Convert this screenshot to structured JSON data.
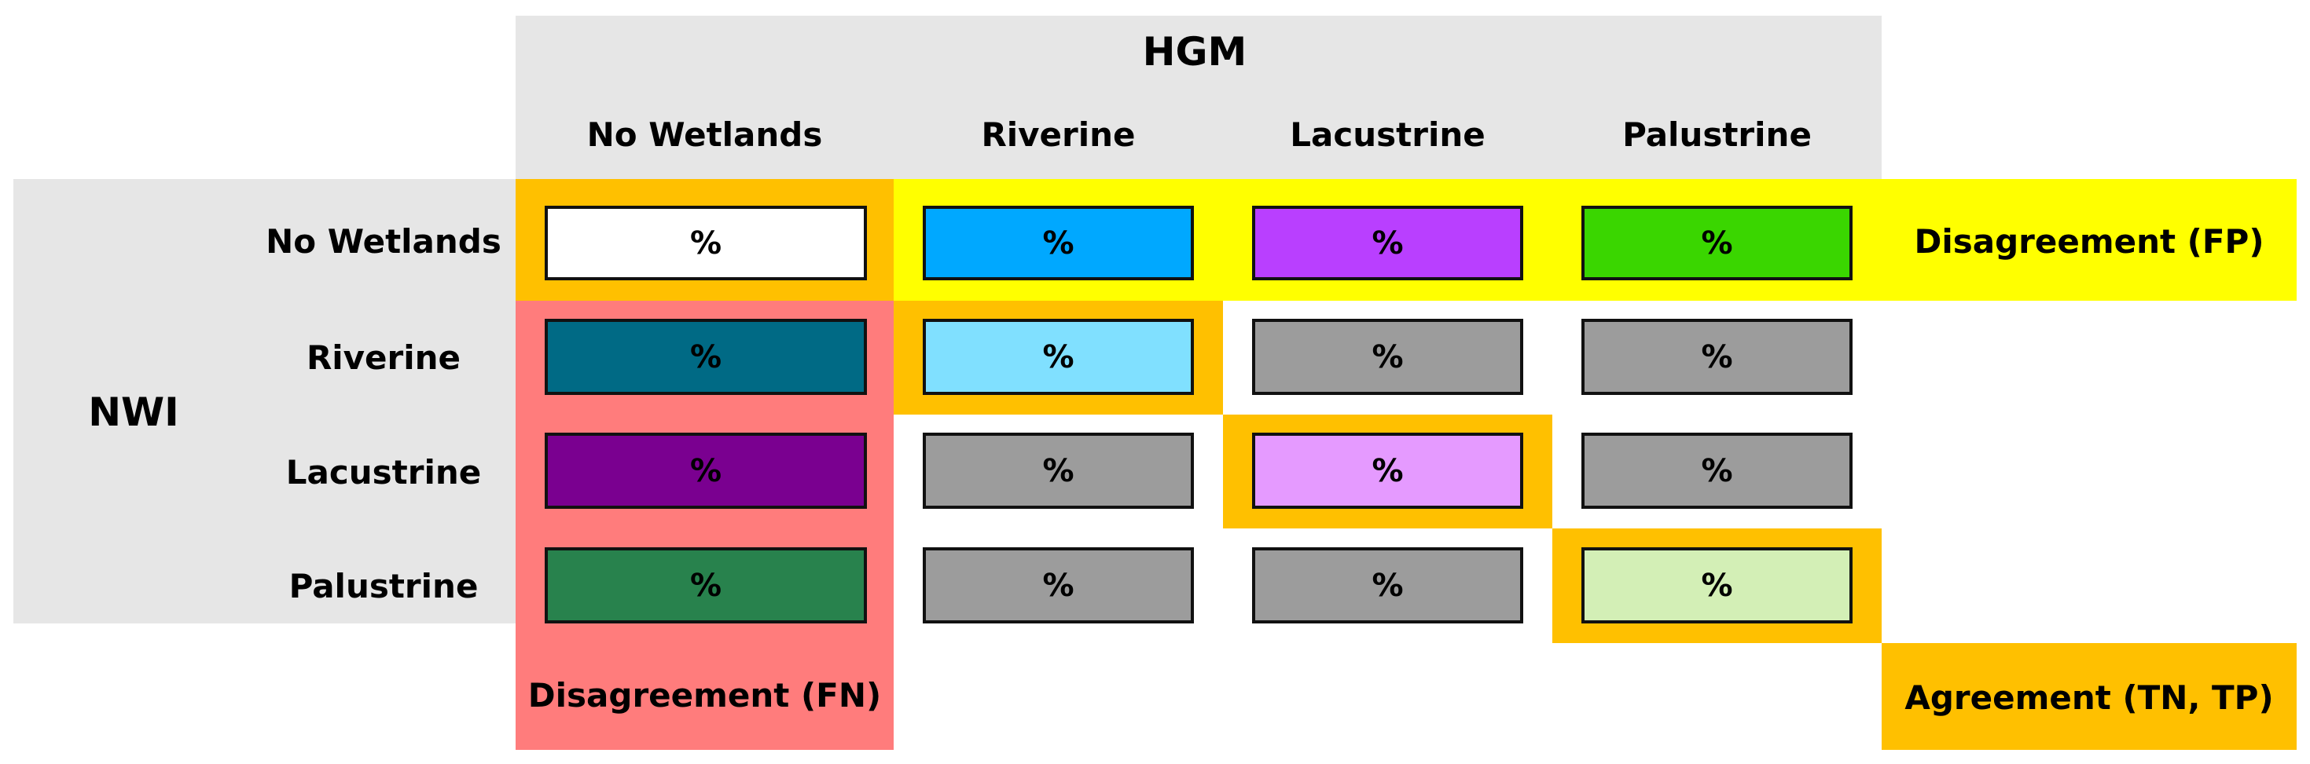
{
  "hgm": {
    "title": "HGM",
    "columns": [
      "No Wetlands",
      "Riverine",
      "Lacustrine",
      "Palustrine"
    ]
  },
  "nwi": {
    "title": "NWI",
    "rows": [
      "No Wetlands",
      "Riverine",
      "Lacustrine",
      "Palustrine"
    ]
  },
  "cell_symbol": "%",
  "legend": {
    "fp": "Disagreement (FP)",
    "fn": "Disagreement (FN)",
    "agreement": "Agreement (TN, TP)"
  },
  "colors": {
    "header_bg": "#e6e6e6",
    "fp_yellow": "#ffff00",
    "fn_red": "#ff7c7c",
    "agreement_orange": "#ffc000",
    "cell_gray": "#9c9c9c",
    "row0": [
      "#ffffff",
      "#00a8ff",
      "#b93fff",
      "#3ad600"
    ],
    "row1": [
      "#006a85",
      "#80e0ff",
      "#9c9c9c",
      "#9c9c9c"
    ],
    "row2": [
      "#7a0090",
      "#9c9c9c",
      "#e59aff",
      "#9c9c9c"
    ],
    "row3": [
      "#28824d",
      "#9c9c9c",
      "#9c9c9c",
      "#d3efb6"
    ]
  }
}
